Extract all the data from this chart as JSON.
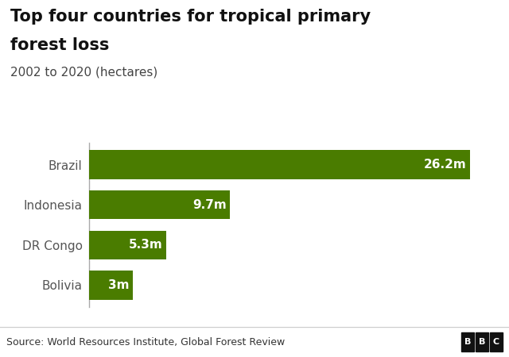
{
  "title_line1": "Top four countries for tropical primary",
  "title_line2": "forest loss",
  "subtitle": "2002 to 2020 (hectares)",
  "categories": [
    "Bolivia",
    "DR Congo",
    "Indonesia",
    "Brazil"
  ],
  "values": [
    3.0,
    5.3,
    9.7,
    26.2
  ],
  "labels": [
    "3m",
    "5.3m",
    "9.7m",
    "26.2m"
  ],
  "bar_color": "#4a7c00",
  "label_color": "#ffffff",
  "background_color": "#ffffff",
  "footer_bg": "#f2f2f2",
  "footer_text": "Source: World Resources Institute, Global Forest Review",
  "bbc_letters": [
    "B",
    "B",
    "C"
  ],
  "xlim": [
    0,
    28
  ],
  "title_fontsize": 15,
  "subtitle_fontsize": 11,
  "label_fontsize": 11,
  "ylabel_fontsize": 11,
  "footer_fontsize": 9
}
